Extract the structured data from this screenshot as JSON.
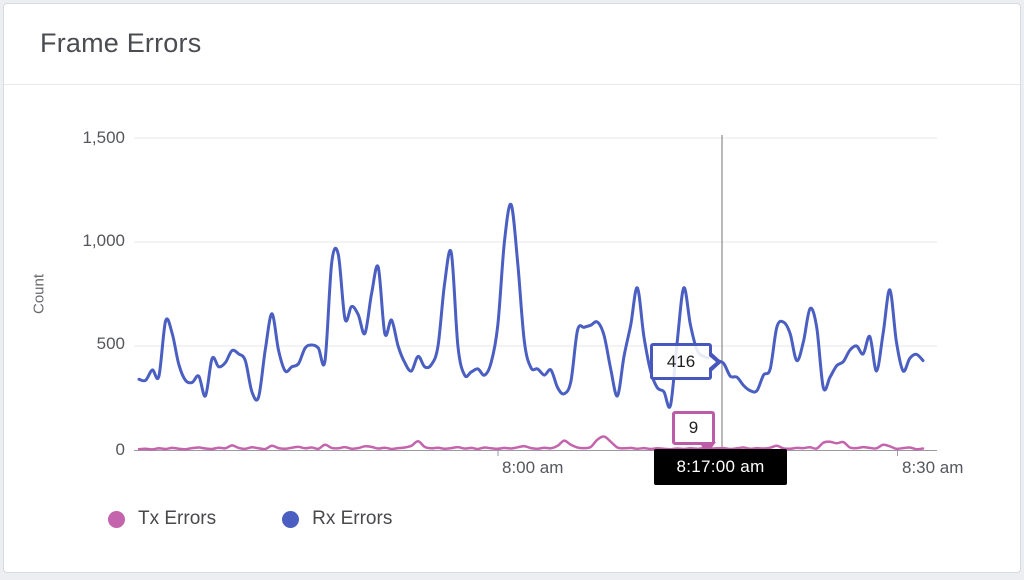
{
  "card": {
    "title": "Frame Errors"
  },
  "y_axis": {
    "label": "Count",
    "ticks": [
      "1,500",
      "1,000",
      "500",
      "0"
    ]
  },
  "x_axis": {
    "ticks": [
      "8:00 am",
      "8:30 am"
    ]
  },
  "tooltip": {
    "rx_value": "416",
    "tx_value": "9",
    "time": "8:17:00 am"
  },
  "legend": [
    {
      "label": "Tx Errors",
      "color": "#c464ac"
    },
    {
      "label": "Rx Errors",
      "color": "#4a5fc1"
    }
  ],
  "colors": {
    "rx_line": "#4a5fc1",
    "tx_line": "#c464ac",
    "rx_tooltip_border": "#4757bb",
    "tx_tooltip_border": "#bd5da8",
    "crosshair": "#8b8b8b",
    "grid": "#e7e7e9",
    "axis": "#9a9aa0",
    "time_tooltip_bg": "#000000"
  },
  "chart_data": {
    "type": "line",
    "title": "Frame Errors",
    "xlabel": "",
    "ylabel": "Count",
    "ylim": [
      0,
      1500
    ],
    "y_tick_values": [
      0,
      500,
      1000,
      1500
    ],
    "x_tick_labels": [
      "8:00 am",
      "8:30 am"
    ],
    "x_start": "7:33:00 am",
    "x_end": "8:32:00 am",
    "interval_seconds": 30,
    "grid": "horizontal",
    "legend_position": "bottom-left",
    "crosshair": {
      "time": "8:17:00 am",
      "rx_errors": 416,
      "tx_errors": 9
    },
    "series": [
      {
        "name": "Tx Errors",
        "color": "#c464ac",
        "values": [
          4,
          6,
          3,
          8,
          5,
          10,
          6,
          4,
          9,
          12,
          7,
          5,
          11,
          8,
          22,
          10,
          6,
          13,
          8,
          5,
          20,
          9,
          6,
          11,
          15,
          8,
          12,
          6,
          25,
          10,
          8,
          14,
          6,
          9,
          18,
          15,
          7,
          11,
          5,
          9,
          12,
          20,
          42,
          15,
          8,
          11,
          6,
          9,
          14,
          7,
          10,
          5,
          12,
          8,
          6,
          10,
          7,
          13,
          18,
          9,
          6,
          11,
          8,
          20,
          45,
          25,
          12,
          9,
          15,
          50,
          65,
          40,
          12,
          8,
          10,
          6,
          9,
          5,
          8,
          6,
          4,
          7,
          5,
          8,
          6,
          9,
          7,
          8,
          9,
          5,
          8,
          12,
          6,
          9,
          7,
          11,
          20,
          8,
          6,
          10,
          9,
          13,
          7,
          35,
          40,
          32,
          38,
          12,
          9,
          14,
          10,
          8,
          25,
          18,
          6,
          9,
          12,
          4,
          7
        ]
      },
      {
        "name": "Rx Errors",
        "color": "#4a5fc1",
        "values": [
          340,
          335,
          385,
          355,
          620,
          560,
          410,
          335,
          325,
          355,
          260,
          440,
          400,
          420,
          478,
          462,
          430,
          280,
          255,
          480,
          655,
          480,
          380,
          400,
          415,
          490,
          505,
          490,
          430,
          900,
          940,
          630,
          690,
          650,
          560,
          750,
          880,
          560,
          625,
          500,
          420,
          380,
          450,
          400,
          410,
          500,
          800,
          948,
          500,
          360,
          375,
          390,
          360,
          420,
          600,
          1000,
          1180,
          900,
          520,
          395,
          390,
          360,
          385,
          300,
          270,
          330,
          575,
          590,
          600,
          615,
          550,
          390,
          260,
          450,
          600,
          780,
          545,
          380,
          300,
          280,
          215,
          520,
          780,
          600,
          480,
          450,
          440,
          430,
          416,
          355,
          350,
          310,
          285,
          285,
          360,
          390,
          590,
          615,
          560,
          430,
          520,
          680,
          590,
          300,
          350,
          405,
          425,
          480,
          500,
          462,
          545,
          380,
          560,
          770,
          520,
          380,
          440,
          460,
          430
        ]
      }
    ]
  }
}
